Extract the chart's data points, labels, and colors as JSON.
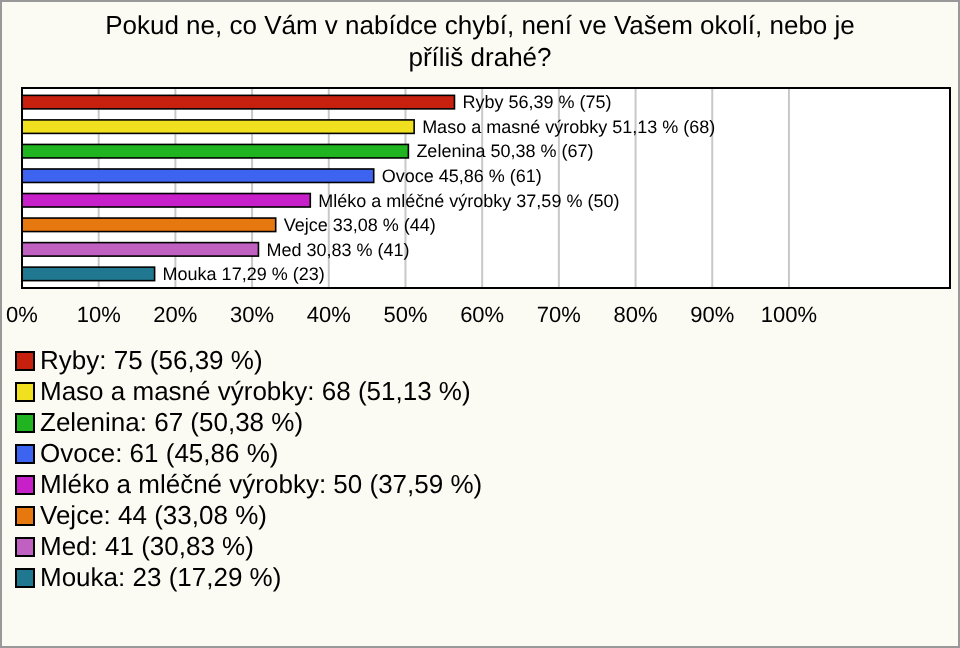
{
  "chart_data": {
    "type": "bar",
    "orientation": "horizontal",
    "title": "Pokud ne, co Vám v nabídce chybí, není ve Vašem okolí, nebo je příliš drahé?",
    "categories": [
      null,
      null,
      null,
      null,
      null,
      null,
      null,
      null
    ],
    "values": [
      56.39,
      51.13,
      50.38,
      45.86,
      37.59,
      33.08,
      30.83,
      17.29
    ],
    "colors": [
      "#c8200f",
      "#f0e020",
      "#20b420",
      "#3c64f0",
      "#c820c8",
      "#e6780f",
      "#c060c0",
      "#207890"
    ],
    "value_labels": [
      "Ryby 56,39 % (75)",
      "Maso a masné výrobky 51,13 % (68)",
      "Zelenina 50,38 % (67)",
      "Ovoce 45,86 % (61)",
      "Mléko a mléčné výrobky 37,59 % (50)",
      "Vejce 33,08 % (44)",
      "Med 30,83 % (41)",
      "Mouka 17,29 % (23)"
    ],
    "xlim": [
      0,
      121
    ],
    "xticks": [
      {
        "value": 0,
        "label": "0%"
      },
      {
        "value": 10,
        "label": "10%"
      },
      {
        "value": 20,
        "label": "20%"
      },
      {
        "value": 30,
        "label": "30%"
      },
      {
        "value": 40,
        "label": "40%"
      },
      {
        "value": 50,
        "label": "50%"
      },
      {
        "value": 60,
        "label": "60%"
      },
      {
        "value": 70,
        "label": "70%"
      },
      {
        "value": 80,
        "label": "80%"
      },
      {
        "value": 90,
        "label": "90%"
      },
      {
        "value": 100,
        "label": "100%"
      }
    ],
    "grid": "x",
    "tick_labels": "x",
    "annotations": [
      "Ryby: 75 (56,39 %)",
      "Maso a masné výrobky: 68 (51,13 %)",
      "Zelenina: 67 (50,38 %)",
      "Ovoce: 61 (45,86 %)",
      "Mléko a mléčné výrobky: 50 (37,59 %)",
      "Vejce: 44 (33,08 %)",
      "Med: 41 (30,83 %)",
      "Mouka: 23 (17,29 %)"
    ]
  }
}
